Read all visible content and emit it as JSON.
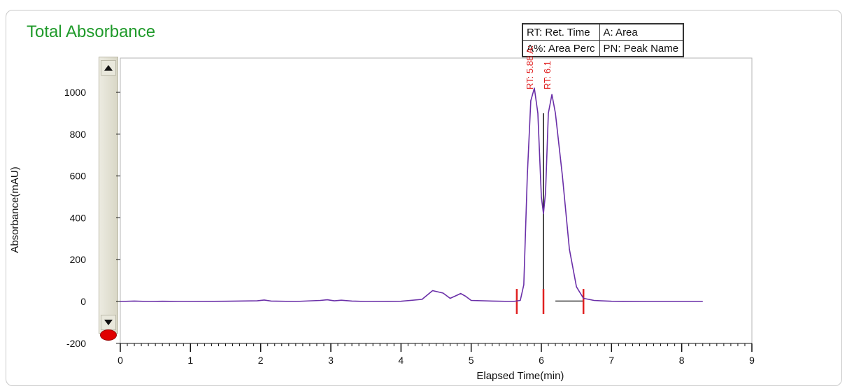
{
  "chart_data": {
    "type": "line",
    "title": "Total Absorbance",
    "xlabel": "Elapsed Time(min)",
    "ylabel": "Absorbance(mAU)",
    "xlim": [
      0,
      9
    ],
    "ylim": [
      -200,
      1100
    ],
    "xticks": [
      "0",
      "1",
      "2",
      "3",
      "4",
      "5",
      "6",
      "7",
      "8",
      "9"
    ],
    "yticks": [
      "-200",
      "0",
      "200",
      "400",
      "600",
      "800",
      "1000"
    ],
    "legend": [
      [
        "RT: Ret. Time",
        "A: Area"
      ],
      [
        "A%: Area Perc",
        "PN: Peak Name"
      ]
    ],
    "series": [
      {
        "color": "#6a2fa8",
        "x": [
          0.0,
          0.2,
          0.4,
          0.6,
          1.0,
          1.5,
          1.95,
          2.05,
          2.15,
          2.5,
          2.85,
          2.95,
          3.05,
          3.15,
          3.3,
          3.5,
          4.0,
          4.3,
          4.45,
          4.6,
          4.7,
          4.8,
          4.85,
          4.92,
          5.0,
          5.3,
          5.6,
          5.7,
          5.75,
          5.8,
          5.85,
          5.9,
          5.95,
          6.0,
          6.03,
          6.06,
          6.1,
          6.15,
          6.2,
          6.3,
          6.4,
          6.5,
          6.6,
          6.75,
          6.85,
          7.0,
          7.5,
          8.0,
          8.3
        ],
        "y": [
          0,
          2,
          0,
          1,
          0,
          1,
          3,
          7,
          2,
          0,
          5,
          8,
          3,
          6,
          2,
          0,
          1,
          10,
          52,
          40,
          15,
          30,
          38,
          25,
          5,
          2,
          0,
          5,
          80,
          600,
          960,
          1020,
          900,
          500,
          420,
          520,
          900,
          990,
          900,
          600,
          250,
          70,
          15,
          5,
          3,
          1,
          0,
          0,
          0
        ]
      }
    ],
    "peak_labels": [
      "RT: 5.88 A:",
      "RT: 6.1"
    ],
    "integration_marks_min": [
      5.65,
      6.03,
      6.6
    ],
    "baseline_segment_min": [
      6.2,
      6.6
    ]
  },
  "controls": {
    "scroll_up_icon": "triangle-up-icon",
    "scroll_down_icon": "triangle-down-icon",
    "record_indicator_color": "#e00000"
  }
}
